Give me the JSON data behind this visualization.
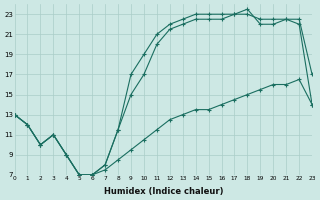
{
  "xlabel": "Humidex (Indice chaleur)",
  "bg_color": "#cde8e4",
  "grid_color": "#aacdc8",
  "line_color": "#1a6e60",
  "xlim": [
    0,
    23
  ],
  "ylim": [
    7,
    24
  ],
  "xticks": [
    0,
    1,
    2,
    3,
    4,
    5,
    6,
    7,
    8,
    9,
    10,
    11,
    12,
    13,
    14,
    15,
    16,
    17,
    18,
    19,
    20,
    21,
    22,
    23
  ],
  "yticks": [
    7,
    9,
    11,
    13,
    15,
    17,
    19,
    21,
    23
  ],
  "line1_x": [
    0,
    1,
    2,
    3,
    4,
    5,
    6,
    7,
    8,
    9,
    10,
    11,
    12,
    13,
    14,
    15,
    16,
    17,
    18,
    19,
    20,
    21,
    22,
    23
  ],
  "line1_y": [
    13,
    12,
    10,
    11,
    9,
    7,
    7,
    7.5,
    8.5,
    9.5,
    10.5,
    11.5,
    12.5,
    13,
    13.5,
    13.5,
    14,
    14.5,
    15,
    15.5,
    16,
    16,
    16.5,
    14
  ],
  "line2_x": [
    0,
    1,
    2,
    3,
    4,
    5,
    6,
    7,
    8,
    9,
    10,
    11,
    12,
    13,
    14,
    15,
    16,
    17,
    18,
    19,
    20,
    21,
    22,
    23
  ],
  "line2_y": [
    13,
    12,
    10,
    11,
    9,
    7,
    7,
    8,
    11.5,
    15,
    17,
    20,
    21.5,
    22,
    22.5,
    22.5,
    22.5,
    23,
    23,
    22.5,
    22.5,
    22.5,
    22.5,
    17
  ],
  "line3_x": [
    0,
    1,
    2,
    3,
    4,
    5,
    6,
    7,
    8,
    9,
    10,
    11,
    12,
    13,
    14,
    15,
    16,
    17,
    18,
    19,
    20,
    21,
    22,
    23
  ],
  "line3_y": [
    13,
    12,
    10,
    11,
    9,
    7,
    7,
    8,
    11.5,
    17,
    19,
    21,
    22,
    22.5,
    23,
    23,
    23,
    23,
    23.5,
    22,
    22,
    22.5,
    22,
    14
  ]
}
